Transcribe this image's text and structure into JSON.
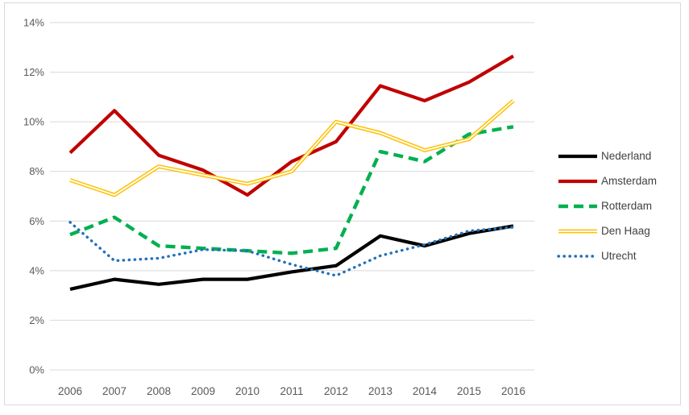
{
  "chart_data": {
    "type": "line",
    "title": "",
    "xlabel": "",
    "ylabel": "",
    "x_categories": [
      "2006",
      "2007",
      "2008",
      "2009",
      "2010",
      "2011",
      "2012",
      "2013",
      "2014",
      "2015",
      "2016"
    ],
    "y_ticks": [
      "0%",
      "2%",
      "4%",
      "6%",
      "8%",
      "10%",
      "12%",
      "14%"
    ],
    "ylim": [
      0,
      14
    ],
    "grid": true,
    "legend_position": "right",
    "series": [
      {
        "name": "Nederland",
        "color": "#000000",
        "line_style": "solid",
        "values": [
          3.25,
          3.65,
          3.45,
          3.65,
          3.65,
          3.95,
          4.2,
          5.4,
          5.0,
          5.5,
          5.8
        ]
      },
      {
        "name": "Amsterdam",
        "color": "#c00000",
        "line_style": "solid",
        "values": [
          8.75,
          10.45,
          8.65,
          8.05,
          7.05,
          8.4,
          9.2,
          11.45,
          10.85,
          11.6,
          12.65
        ]
      },
      {
        "name": "Rotterdam",
        "color": "#00b050",
        "line_style": "dashed",
        "values": [
          5.45,
          6.15,
          5.0,
          4.9,
          4.8,
          4.7,
          4.9,
          8.8,
          8.4,
          9.5,
          9.8
        ]
      },
      {
        "name": "Den Haag",
        "color": "#ffc000",
        "line_style": "double",
        "values": [
          7.65,
          7.05,
          8.2,
          7.85,
          7.5,
          8.0,
          10.0,
          9.55,
          8.85,
          9.3,
          10.85
        ]
      },
      {
        "name": "Utrecht",
        "color": "#2271b8",
        "line_style": "dotted",
        "values": [
          5.95,
          4.4,
          4.5,
          4.85,
          4.8,
          4.25,
          3.8,
          4.6,
          5.05,
          5.6,
          5.75
        ]
      }
    ]
  },
  "colors": {
    "background": "#ffffff",
    "border": "#d9d9d9",
    "gridline": "#d9d9d9",
    "axis_label": "#595959",
    "legend_text": "#404040"
  }
}
